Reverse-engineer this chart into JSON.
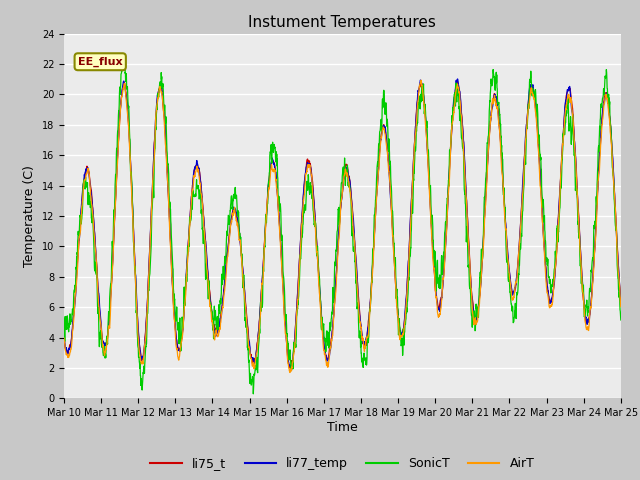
{
  "title": "Instument Temperatures",
  "xlabel": "Time",
  "ylabel": "Temperature (C)",
  "ylim": [
    0,
    24
  ],
  "yticks": [
    0,
    2,
    4,
    6,
    8,
    10,
    12,
    14,
    16,
    18,
    20,
    22,
    24
  ],
  "x_labels": [
    "Mar 10",
    "Mar 11",
    "Mar 12",
    "Mar 13",
    "Mar 14",
    "Mar 15",
    "Mar 16",
    "Mar 17",
    "Mar 18",
    "Mar 19",
    "Mar 20",
    "Mar 21",
    "Mar 22",
    "Mar 23",
    "Mar 24",
    "Mar 25"
  ],
  "annotation": "EE_flux",
  "colors": {
    "li75_t": "#cc0000",
    "li77_temp": "#0000cc",
    "SonicT": "#00cc00",
    "AirT": "#ff9900"
  },
  "background_color": "#ebebeb",
  "fig_background": "#c8c8c8",
  "title_fontsize": 11,
  "axis_fontsize": 9,
  "tick_fontsize": 7,
  "legend_fontsize": 9,
  "linewidth": 0.9
}
